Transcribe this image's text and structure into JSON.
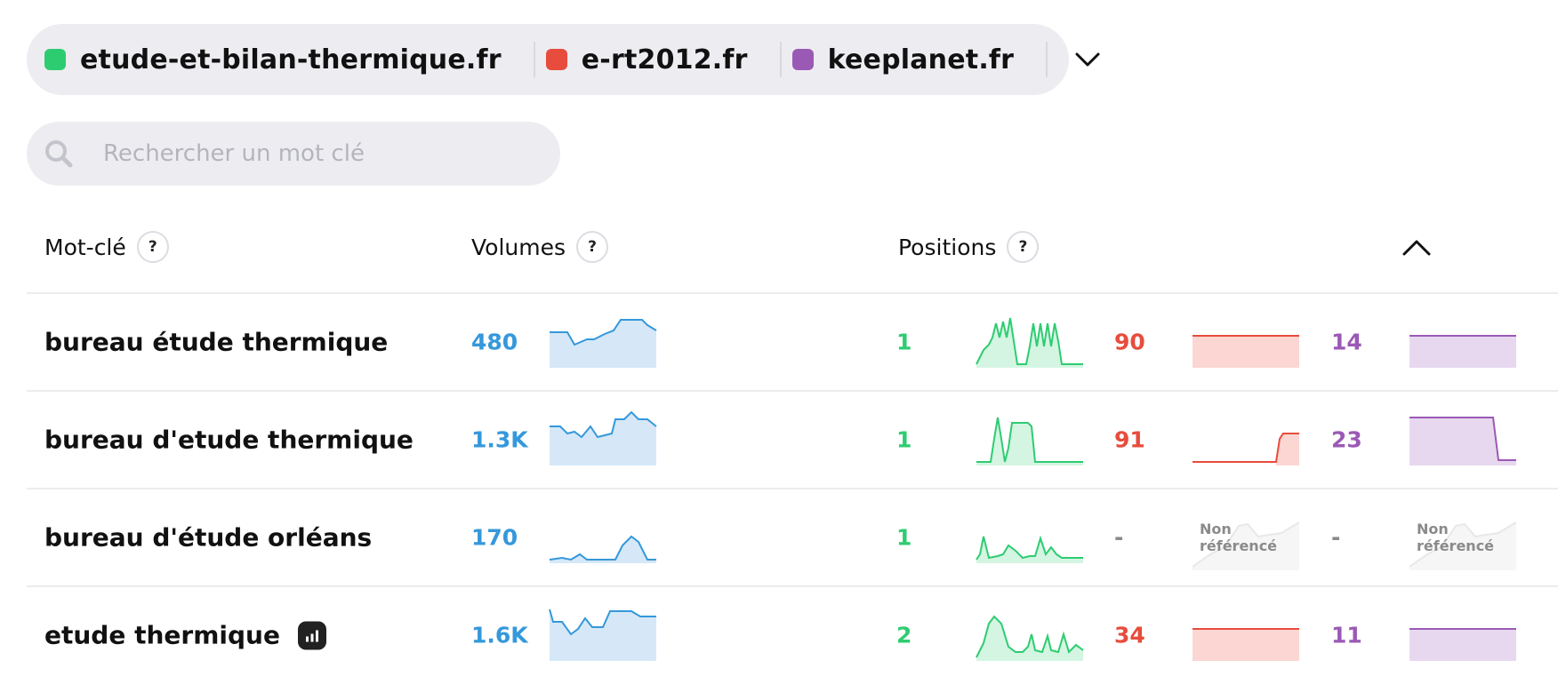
{
  "domains": [
    {
      "label": "etude-et-bilan-thermique.fr",
      "color": "#2ecc71"
    },
    {
      "label": "e-rt2012.fr",
      "color": "#e74c3c"
    },
    {
      "label": "keeplanet.fr",
      "color": "#9b59b6"
    }
  ],
  "search": {
    "placeholder": "Rechercher un mot clé"
  },
  "headers": {
    "keyword": "Mot-clé",
    "volumes": "Volumes",
    "positions": "Positions",
    "help": "?"
  },
  "colors": {
    "volume": "#3498db",
    "green": "#2ecc71",
    "red": "#e74c3c",
    "purple": "#9b59b6"
  },
  "rows": [
    {
      "keyword": "bureau étude thermique",
      "volume": "480",
      "pos1": "1",
      "pos2": "90",
      "pos3": "14",
      "nr2": "",
      "nr3": "",
      "badge": false
    },
    {
      "keyword": "bureau d'etude thermique",
      "volume": "1.3K",
      "pos1": "1",
      "pos2": "91",
      "pos3": "23",
      "nr2": "",
      "nr3": "",
      "badge": false
    },
    {
      "keyword": "bureau d'étude orléans",
      "volume": "170",
      "pos1": "1",
      "pos2": "-",
      "pos3": "-",
      "nr2": "Non référencé",
      "nr3": "Non référencé",
      "badge": false
    },
    {
      "keyword": "etude thermique",
      "volume": "1.6K",
      "pos1": "2",
      "pos2": "34",
      "pos3": "11",
      "nr2": "",
      "nr3": "",
      "badge": true
    }
  ]
}
